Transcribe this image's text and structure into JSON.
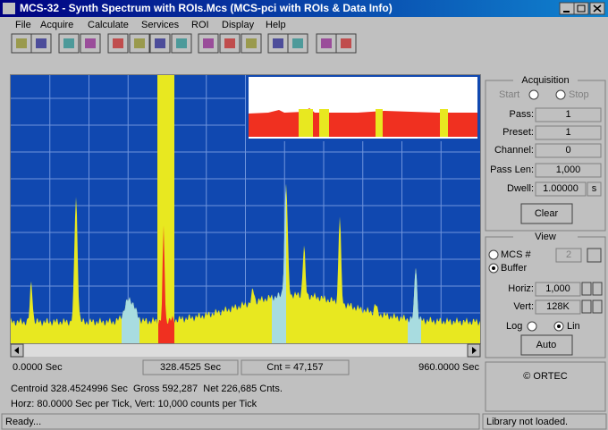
{
  "window": {
    "title": "MCS-32 - Synth Spectrum with ROIs.Mcs (MCS-pci with ROIs & Data Info)"
  },
  "menu": [
    "File",
    "Acquire",
    "Calculate",
    "Services",
    "ROI",
    "Display",
    "Help"
  ],
  "readout": {
    "start": "0.0000 Sec",
    "cursor": "328.4525 Sec",
    "count": "Cnt = 47,157",
    "end": "960.0000 Sec",
    "centroid": "Centroid 328.4524996 Sec  Gross 592,287  Net 226,685 Cnts.",
    "scale": "Horz: 80.0000 Sec per Tick, Vert: 10,000 counts per Tick"
  },
  "acquisition": {
    "title": "Acquisition",
    "start": "Start",
    "stop": "Stop",
    "fields": [
      {
        "label": "Pass:",
        "value": "1"
      },
      {
        "label": "Preset:",
        "value": "1"
      },
      {
        "label": "Channel:",
        "value": "0"
      },
      {
        "label": "Pass Len:",
        "value": "1,000"
      },
      {
        "label": "Dwell:",
        "value": "1.00000"
      }
    ],
    "unit": "s",
    "clear": "Clear"
  },
  "view": {
    "title": "View",
    "mcs": "MCS #",
    "mcs_value": "2",
    "buffer": "Buffer",
    "horiz": "Horiz:",
    "horiz_value": "1,000",
    "vert": "Vert:",
    "vert_value": "128K",
    "log": "Log",
    "lin": "Lin",
    "auto": "Auto"
  },
  "brand": "© ORTEC",
  "status": {
    "left": "Ready...",
    "right": "Library not loaded."
  }
}
